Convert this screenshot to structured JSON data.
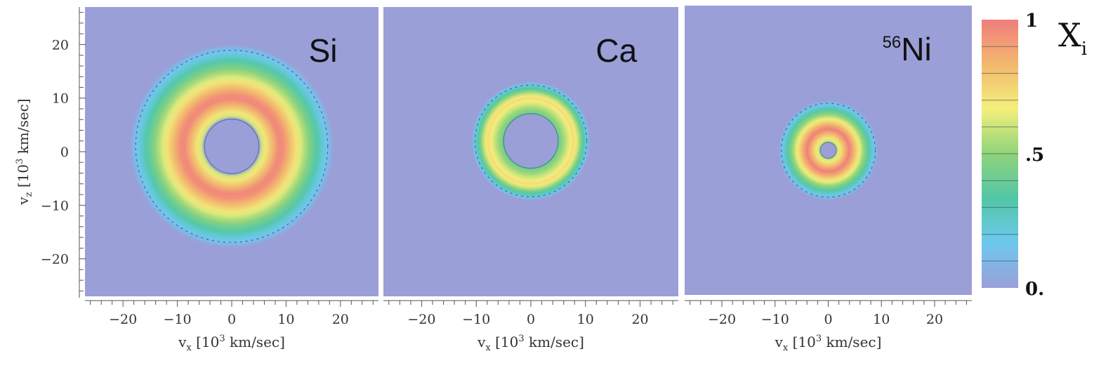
{
  "chart_data": {
    "type": "heatmap",
    "ylabel_prefix": "v",
    "ylabel_sub": "z",
    "ylabel_suffix": " [10",
    "ylabel_sup": "3",
    "ylabel_units": " km/sec]",
    "xlabel_prefix": "v",
    "xlabel_sub": "x",
    "xlabel_suffix": " [10",
    "xlabel_sup": "3",
    "xlabel_units": " km/sec]",
    "xlim": [
      -27,
      27
    ],
    "ylim": [
      -27,
      27
    ],
    "xticks": [
      "−20",
      "−10",
      "0",
      "10",
      "20"
    ],
    "yticks": [
      "20",
      "10",
      "0",
      "−10",
      "−20"
    ],
    "xtick_values": [
      -20,
      -10,
      0,
      10,
      20
    ],
    "ytick_values": [
      20,
      10,
      0,
      -10,
      -20
    ],
    "background_color": "#9a9fd8",
    "panels": [
      {
        "label_sup": "",
        "label": "Si",
        "shell": {
          "center": [
            0,
            1
          ],
          "inner_radius": 5,
          "peak_radius": 9,
          "outer_radius": 19,
          "peak_value": 1.0
        }
      },
      {
        "label_sup": "",
        "label": "Ca",
        "shell": {
          "center": [
            0,
            2
          ],
          "inner_radius": 5,
          "peak_radius": 8,
          "outer_radius": 11,
          "peak_value": 0.75
        }
      },
      {
        "label_sup": "56",
        "label": "Ni",
        "shell": {
          "center": [
            0,
            0
          ],
          "inner_radius": 1.5,
          "peak_radius": 4,
          "outer_radius": 9.5,
          "peak_value": 1.0
        }
      }
    ],
    "colorbar": {
      "title": "X",
      "title_sub": "i",
      "range": [
        0,
        1
      ],
      "tick_labels": [
        "1",
        ".5",
        "0."
      ],
      "tick_values": [
        1,
        0.5,
        0
      ],
      "colors": [
        "#9a9fd8",
        "#6ec8ef",
        "#52c7a6",
        "#8fd37a",
        "#f3f07c",
        "#f2b86d",
        "#f07d7d"
      ]
    }
  }
}
